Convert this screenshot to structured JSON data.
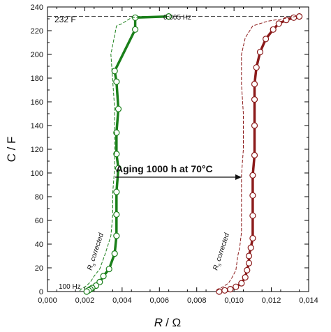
{
  "chart_data": {
    "type": "line",
    "xlabel_italic": "R",
    "xlabel_unit": "/ Ω",
    "ylabel": "C / F",
    "xlim": [
      0,
      0.014
    ],
    "ylim": [
      0,
      240
    ],
    "x_ticks": [
      0,
      0.002,
      0.004,
      0.006,
      0.008,
      0.01,
      0.012,
      0.014
    ],
    "x_tick_labels": [
      "0,000",
      "0,002",
      "0,004",
      "0,006",
      "0,008",
      "0,010",
      "0,012",
      "0,014"
    ],
    "y_ticks": [
      0,
      20,
      40,
      60,
      80,
      100,
      120,
      140,
      160,
      180,
      200,
      220,
      240
    ],
    "y_tick_labels": [
      "0",
      "20",
      "40",
      "60",
      "80",
      "100",
      "120",
      "140",
      "160",
      "180",
      "200",
      "220",
      "240"
    ],
    "grid": false,
    "colors": {
      "green": "#1a7f1a",
      "darkred": "#8b1a1a",
      "reference": "#333333"
    },
    "reference_line": {
      "y": 232,
      "x_range": [
        0,
        0.0136
      ],
      "style": "dashed"
    },
    "series": [
      {
        "color": "green",
        "style": "solid-thick",
        "markers": true,
        "points": [
          [
            0.0065,
            232
          ],
          [
            0.0047,
            231
          ],
          [
            0.0047,
            221
          ],
          [
            0.0036,
            186
          ],
          [
            0.0037,
            177
          ],
          [
            0.0038,
            154
          ],
          [
            0.0037,
            134
          ],
          [
            0.0037,
            116
          ],
          [
            0.0038,
            104
          ],
          [
            0.0037,
            84
          ],
          [
            0.0037,
            65
          ],
          [
            0.0037,
            47
          ],
          [
            0.0036,
            32
          ],
          [
            0.0033,
            19
          ],
          [
            0.003,
            13
          ],
          [
            0.0028,
            8
          ],
          [
            0.0026,
            5
          ],
          [
            0.0024,
            3
          ],
          [
            0.0023,
            2
          ],
          [
            0.0022,
            1
          ],
          [
            0.0021,
            0
          ]
        ]
      },
      {
        "color": "green",
        "style": "dashed",
        "markers": false,
        "points": [
          [
            0.0065,
            232
          ],
          [
            0.0045,
            231
          ],
          [
            0.004,
            226
          ],
          [
            0.0037,
            224
          ],
          [
            0.0034,
            200
          ],
          [
            0.0035,
            177
          ],
          [
            0.0036,
            154
          ],
          [
            0.0036,
            134
          ],
          [
            0.0036,
            116
          ],
          [
            0.0036,
            104
          ],
          [
            0.0035,
            84
          ],
          [
            0.0035,
            65
          ],
          [
            0.0034,
            47
          ],
          [
            0.0031,
            32
          ],
          [
            0.0028,
            19
          ],
          [
            0.0025,
            13
          ],
          [
            0.0023,
            8
          ],
          [
            0.0021,
            5
          ],
          [
            0.0019,
            3
          ],
          [
            0.0018,
            2
          ],
          [
            0.0017,
            0
          ]
        ]
      },
      {
        "color": "darkred",
        "style": "solid-thick",
        "markers": true,
        "points": [
          [
            0.0135,
            232
          ],
          [
            0.0132,
            231
          ],
          [
            0.0128,
            229
          ],
          [
            0.0124,
            226
          ],
          [
            0.0121,
            221
          ],
          [
            0.0117,
            213
          ],
          [
            0.0114,
            202
          ],
          [
            0.0112,
            189
          ],
          [
            0.0111,
            175
          ],
          [
            0.0111,
            162
          ],
          [
            0.0111,
            140
          ],
          [
            0.0111,
            115
          ],
          [
            0.011,
            98
          ],
          [
            0.011,
            81
          ],
          [
            0.011,
            64
          ],
          [
            0.011,
            45
          ],
          [
            0.0109,
            37
          ],
          [
            0.0108,
            30
          ],
          [
            0.0108,
            24
          ],
          [
            0.0107,
            18
          ],
          [
            0.0106,
            12
          ],
          [
            0.0104,
            7
          ],
          [
            0.0101,
            4
          ],
          [
            0.0098,
            2
          ],
          [
            0.0095,
            1
          ],
          [
            0.0092,
            0
          ]
        ]
      },
      {
        "color": "darkred",
        "style": "dashed",
        "markers": false,
        "points": [
          [
            0.0133,
            232
          ],
          [
            0.0126,
            230
          ],
          [
            0.0118,
            228
          ],
          [
            0.011,
            224
          ],
          [
            0.0106,
            214
          ],
          [
            0.0104,
            200
          ],
          [
            0.0104,
            175
          ],
          [
            0.0105,
            150
          ],
          [
            0.0105,
            120
          ],
          [
            0.0104,
            98
          ],
          [
            0.0104,
            75
          ],
          [
            0.0104,
            50
          ],
          [
            0.0103,
            37
          ],
          [
            0.0102,
            30
          ],
          [
            0.0101,
            18
          ],
          [
            0.0099,
            12
          ],
          [
            0.0097,
            7
          ],
          [
            0.0094,
            4
          ],
          [
            0.0092,
            2
          ],
          [
            0.009,
            0
          ]
        ]
      }
    ],
    "annotations": {
      "capacitance_label": "232 F",
      "low_freq_label": "0.005 Hz",
      "high_freq_label": "100 Hz",
      "aging_label": "Aging 1000 h at 70°C",
      "rs_corrected_green": "R",
      "rs_corrected_green_sub": "s",
      "rs_corrected_green_rest": " corrected",
      "rs_corrected_red": "R",
      "rs_corrected_red_sub": "s",
      "rs_corrected_red_rest": " corrected"
    }
  }
}
